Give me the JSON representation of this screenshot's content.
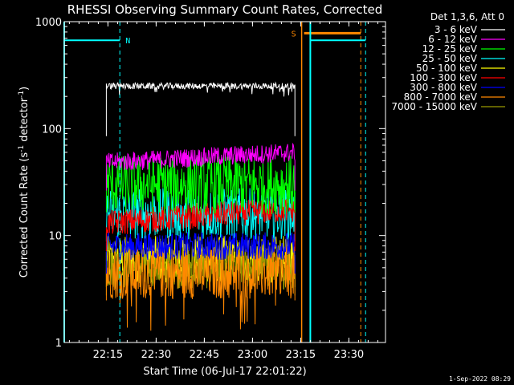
{
  "chart_data": {
    "type": "line",
    "title": "RHESSI Observing Summary Count Rates, Corrected",
    "xlabel": "Start Time (06-Jul-17 22:01:22)",
    "ylabel_main": "Corrected Count Rate (s",
    "ylabel_sup1": "-1",
    "ylabel_mid": " detector",
    "ylabel_sup2": "-1",
    "ylabel_end": ")",
    "yscale": "log",
    "ylim": [
      1,
      1000
    ],
    "xlim_minutes": [
      0,
      100
    ],
    "x_ticks": [
      {
        "label": "22:15",
        "minutes": 13.6
      },
      {
        "label": "22:30",
        "minutes": 28.6
      },
      {
        "label": "22:45",
        "minutes": 43.6
      },
      {
        "label": "23:00",
        "minutes": 58.6
      },
      {
        "label": "23:15",
        "minutes": 73.6
      },
      {
        "label": "23:30",
        "minutes": 88.6
      }
    ],
    "y_ticks": [
      {
        "label": "1",
        "value": 1
      },
      {
        "label": "10",
        "value": 10
      },
      {
        "label": "100",
        "value": 100
      },
      {
        "label": "1000",
        "value": 1000
      }
    ],
    "legend_title": "Det 1,3,6, Att 0",
    "legend_position": "top-right",
    "data_interval_minutes": [
      13.1,
      71.8
    ],
    "series": [
      {
        "name": "3 - 6 keV",
        "color": "#ffffff",
        "level": 250
      },
      {
        "name": "6 - 12 keV",
        "color": "#ff00ff",
        "level": 48
      },
      {
        "name": "12 - 25 keV",
        "color": "#00ff00",
        "level": 30
      },
      {
        "name": "25 - 50 keV",
        "color": "#00ffff",
        "level": 16
      },
      {
        "name": "50 - 100 keV",
        "color": "#ffff00",
        "level": 6
      },
      {
        "name": "100 - 300 keV",
        "color": "#ff0000",
        "level": 13
      },
      {
        "name": "300 - 800 keV",
        "color": "#0000ff",
        "level": 8
      },
      {
        "name": "800 - 7000 keV",
        "color": "#ff8800",
        "level": 4.5
      },
      {
        "name": "7000 - 15000 keV",
        "color": "#999900",
        "level": 5
      }
    ],
    "annotations": [
      {
        "label": "N",
        "color": "#00ffff",
        "minutes": 17.3
      },
      {
        "label": "S",
        "color": "#ff8800",
        "minutes": 73.9
      }
    ],
    "footer": "1-Sep-2022 08:29"
  }
}
